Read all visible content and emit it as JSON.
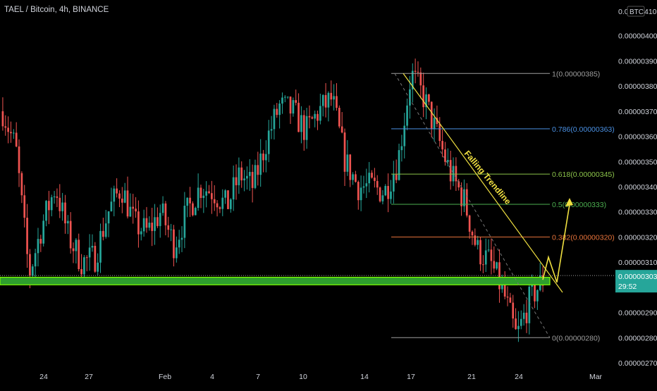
{
  "header": {
    "title": "TAEL / Bitcoin, 4h, BINANCE"
  },
  "axis": {
    "currency_label": "BTC",
    "top_partial": "0.0",
    "top_partial_tail": "410",
    "countdown": "29:52"
  },
  "colors": {
    "background": "#000000",
    "up": "#26a69a",
    "down": "#ef5350",
    "support_zone": "#2e9e2e",
    "support_border": "#7fff00",
    "trendline": "#f0e040",
    "projection": "#f0e040",
    "text": "#d1d4dc",
    "last_price_bg": "#26a69a"
  },
  "chart_data": {
    "type": "candlestick",
    "title": "TAEL / Bitcoin, 4h, BINANCE",
    "y_unit": "BTC",
    "ylim": [
      2.7e-06,
      4.1e-06
    ],
    "y_ticks": [
      "0.00000400",
      "0.00000390",
      "0.00000380",
      "0.00000370",
      "0.00000360",
      "0.00000350",
      "0.00000340",
      "0.00000330",
      "0.00000320",
      "0.00000310",
      "0.00000290",
      "0.00000280",
      "0.00000270"
    ],
    "x_ticks": [
      "24",
      "27",
      "Feb",
      "4",
      "7",
      "10",
      "14",
      "17",
      "21",
      "24",
      "Mar"
    ],
    "last_price": "0.00000303",
    "support_zone": [
      3.01e-06,
      3.04e-06
    ],
    "fibonacci": [
      {
        "level": "1",
        "price": "0.00000385",
        "label": "1(0.00000385)",
        "color": "#9e9e9e"
      },
      {
        "level": "0.786",
        "price": "0.00000363",
        "label": "0.786(0.00000363)",
        "color": "#4a90e2"
      },
      {
        "level": "0.618",
        "price": "0.00000345",
        "label": "0.618(0.00000345)",
        "color": "#8bc34a"
      },
      {
        "level": "0.5",
        "price": "0.00000333",
        "label": "0.5(0.00000333)",
        "color": "#4caf50"
      },
      {
        "level": "0.382",
        "price": "0.00000320",
        "label": "0.382(0.00000320)",
        "color": "#e8743b"
      },
      {
        "level": "0",
        "price": "0.00000280",
        "label": "0(0.00000280)",
        "color": "#9e9e9e"
      }
    ],
    "trendline": {
      "label": "Falling Trendline",
      "from_price": 3.85e-06,
      "to_price": 2.98e-06
    },
    "projection": [
      3.03e-06,
      3.12e-06,
      3.02e-06,
      3.33e-06
    ],
    "price_path": [
      [
        3.7e-06,
        3.55e-06
      ],
      [
        3.05e-06,
        3.25e-06
      ],
      [
        3.4e-06,
        3.2e-06
      ],
      [
        3.1e-06,
        3.12e-06
      ],
      [
        3.3e-06,
        3.4e-06
      ],
      [
        3.25e-06,
        3.22e-06
      ],
      [
        3.3e-06,
        3.17e-06
      ],
      [
        3.3e-06,
        3.4e-06
      ],
      [
        3.38e-06,
        3.32e-06
      ],
      [
        3.45e-06,
        3.4e-06
      ],
      [
        3.58e-06,
        3.72e-06
      ],
      [
        3.7e-06,
        3.62e-06
      ],
      [
        3.7e-06,
        3.75e-06
      ],
      [
        3.5e-06,
        3.4e-06
      ],
      [
        3.4e-06,
        3.38e-06
      ],
      [
        3.5e-06,
        3.85e-06
      ],
      [
        3.75e-06,
        3.6e-06
      ],
      [
        3.45e-06,
        3.35e-06
      ],
      [
        3.15e-06,
        3.1e-06
      ],
      [
        2.98e-06,
        2.8e-06
      ],
      [
        2.95e-06,
        3.03e-06
      ]
    ]
  }
}
